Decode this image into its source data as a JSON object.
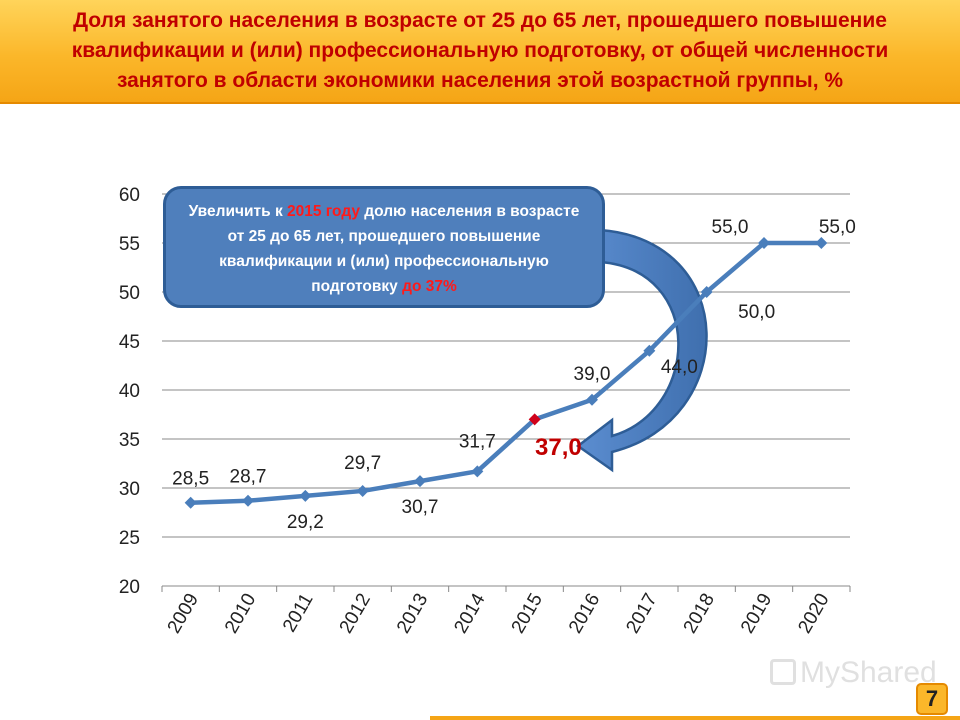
{
  "header": {
    "title_line1": "Доля занятого населения в возрасте от 25 до 65 лет, прошедшего повышение",
    "title_line2": "квалификации и (или) профессиональную подготовку, от общей численности",
    "title_line3": "занятого в области экономики населения этой возрастной группы, %"
  },
  "callout": {
    "part1": "Увеличить к ",
    "year": "2015 году",
    "part2": " долю населения в возрасте от 25 до 65 лет, прошедшего повышение квалификации и (или) профессиональную подготовку ",
    "target": "до 37%"
  },
  "target_label": "37,0",
  "page_number": "7",
  "watermark": "MyShared",
  "chart_data": {
    "type": "line",
    "title": "",
    "xlabel": "",
    "ylabel": "",
    "categories": [
      "2009",
      "2010",
      "2011",
      "2012",
      "2013",
      "2014",
      "2015",
      "2016",
      "2017",
      "2018",
      "2019",
      "2020"
    ],
    "values": [
      28.5,
      28.7,
      29.2,
      29.7,
      30.7,
      31.7,
      37.0,
      39.0,
      44.0,
      50.0,
      55.0,
      55.0
    ],
    "data_labels": [
      "28,5",
      "28,7",
      "29,2",
      "29,7",
      "30,7",
      "31,7",
      "37,0",
      "39,0",
      "44,0",
      "50,0",
      "55,0",
      "55,0"
    ],
    "highlight_index": 6,
    "ylim": [
      20,
      60
    ],
    "yticks": [
      20,
      25,
      30,
      35,
      40,
      45,
      50,
      55,
      60
    ],
    "ytick_labels": [
      "20",
      "25",
      "30",
      "35",
      "40",
      "45",
      "50",
      "55",
      "60"
    ],
    "grid": true,
    "legend": "none",
    "colors": {
      "line": "#4a7ebb",
      "highlight_marker": "#d0021b",
      "gridline": "#888888",
      "data_label": "#222222"
    }
  }
}
